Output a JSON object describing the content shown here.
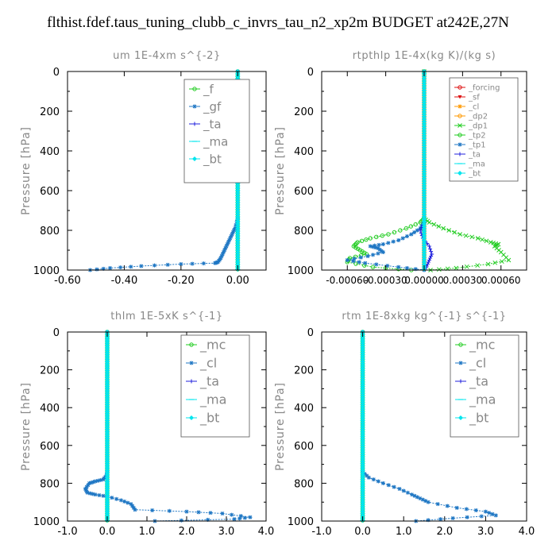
{
  "suptitle": "flthist.fdef.taus_tuning_clubb_c_invrs_tau_n2_xp2m  BUDGET at242E,27N",
  "colors": {
    "green": "#22cc22",
    "blue": "#1f77c4",
    "navy": "#2020dd",
    "orange": "#ff9900",
    "red": "#dd1111",
    "cyan": "#00e5ee",
    "axis_text": "#888888"
  },
  "chart_data": [
    {
      "type": "line",
      "title": "um  1E-4xm s^{-2}",
      "ylabel": "Pressure [hPa]",
      "xlim": [
        -0.6,
        0.1
      ],
      "ylim": [
        1000,
        0
      ],
      "xticks": [
        "-0.60",
        "-0.40",
        "-0.20",
        "0.00"
      ],
      "xtick_values": [
        -0.6,
        -0.4,
        -0.2,
        0.0
      ],
      "yticks": [
        "0",
        "200",
        "400",
        "600",
        "800",
        "1000"
      ],
      "legend_position": "top-right",
      "series": [
        {
          "name": "_f",
          "color": "#22cc22",
          "marker": "o",
          "x": [
            0,
            0
          ],
          "y": [
            0,
            1000
          ]
        },
        {
          "name": "_gf",
          "color": "#1f77c4",
          "marker": "*",
          "x": [
            0,
            0,
            -0.01,
            -0.02,
            -0.03,
            -0.04,
            -0.05,
            -0.06,
            -0.07,
            -0.08,
            -0.2,
            -0.34,
            -0.45,
            -0.52
          ],
          "y": [
            0,
            740,
            790,
            820,
            850,
            880,
            910,
            940,
            960,
            965,
            970,
            980,
            990,
            1000
          ]
        },
        {
          "name": "_ta",
          "color": "#2020dd",
          "marker": "+",
          "x": [
            0,
            0
          ],
          "y": [
            0,
            1000
          ]
        },
        {
          "name": "_ma",
          "color": "#00e5ee",
          "marker": "-",
          "x": [
            0,
            0
          ],
          "y": [
            0,
            1000
          ]
        },
        {
          "name": "_bt",
          "color": "#00e5ee",
          "marker": "D",
          "x": [
            0,
            0
          ],
          "y": [
            0,
            1000
          ]
        }
      ]
    },
    {
      "type": "line",
      "title": "rtpthlp  1E-4x(kg K)/(kg s)",
      "ylabel": "Pressure [hPa]",
      "xlim": [
        -0.0008,
        0.0008
      ],
      "ylim": [
        1000,
        0
      ],
      "xticks": [
        "-0.00060",
        "-0.00030",
        "0.00000",
        "0.00030",
        "0.00060"
      ],
      "xtick_values": [
        -0.0006,
        -0.0003,
        0.0,
        0.0003,
        0.0006
      ],
      "yticks": [
        "0",
        "200",
        "400",
        "600",
        "800",
        "1000"
      ],
      "legend_position": "top-right",
      "series": [
        {
          "name": "_forcing",
          "color": "#dd1111",
          "marker": "o",
          "x": [
            0,
            0
          ],
          "y": [
            0,
            1000
          ]
        },
        {
          "name": "_sf",
          "color": "#dd1111",
          "marker": "v",
          "x": [
            0,
            0
          ],
          "y": [
            0,
            1000
          ]
        },
        {
          "name": "_cl",
          "color": "#ff9900",
          "marker": "*",
          "x": [
            0,
            0
          ],
          "y": [
            0,
            1000
          ]
        },
        {
          "name": "_dp2",
          "color": "#ff9900",
          "marker": "o",
          "x": [
            0,
            0
          ],
          "y": [
            0,
            1000
          ]
        },
        {
          "name": "_dp1",
          "color": "#22cc22",
          "marker": "x",
          "x": [
            0,
            0,
            4e-05,
            0.00015,
            0.00028,
            0.00042,
            0.00052,
            0.00058,
            0.00055,
            0.0006,
            0.00066,
            0.0005,
            0.00025,
            5e-05
          ],
          "y": [
            0,
            740,
            760,
            790,
            820,
            840,
            860,
            870,
            880,
            910,
            950,
            970,
            990,
            1000
          ]
        },
        {
          "name": "_tp2",
          "color": "#22cc22",
          "marker": "o",
          "x": [
            0,
            0,
            -3e-05,
            -0.00014,
            -0.00028,
            -0.00042,
            -0.00052,
            -0.00055,
            -0.0005,
            -0.00045,
            -0.00058,
            -0.0006,
            -0.0004,
            -0.0001
          ],
          "y": [
            0,
            740,
            760,
            790,
            820,
            840,
            860,
            880,
            900,
            920,
            940,
            960,
            985,
            1000
          ]
        },
        {
          "name": "_tp1",
          "color": "#1f77c4",
          "marker": "*",
          "x": [
            0,
            0,
            -3e-05,
            -0.0001,
            -0.0002,
            -0.00032,
            -0.00042,
            -0.00036,
            -0.00032,
            -0.00044,
            -0.0006,
            -0.00046,
            -0.0002,
            0
          ],
          "y": [
            0,
            760,
            790,
            820,
            850,
            870,
            880,
            890,
            910,
            930,
            950,
            965,
            985,
            1000
          ]
        },
        {
          "name": "_ta",
          "color": "#2020dd",
          "marker": "+",
          "x": [
            0,
            0,
            -3e-05,
            -1e-05,
            4e-05,
            6e-05,
            4e-05,
            2e-05,
            0
          ],
          "y": [
            0,
            760,
            800,
            840,
            880,
            920,
            950,
            980,
            1000
          ]
        },
        {
          "name": "_ma",
          "color": "#00e5ee",
          "marker": "-",
          "x": [
            0,
            0
          ],
          "y": [
            0,
            1000
          ]
        },
        {
          "name": "_bt",
          "color": "#00e5ee",
          "marker": "D",
          "x": [
            0,
            0
          ],
          "y": [
            0,
            1000
          ]
        }
      ]
    },
    {
      "type": "line",
      "title": "thlm  1E-5xK s^{-1}",
      "ylabel": "Pressure [hPa]",
      "xlim": [
        -1.0,
        4.0
      ],
      "ylim": [
        1000,
        0
      ],
      "xticks": [
        "-1.0",
        "0.0",
        "1.0",
        "2.0",
        "3.0",
        "4.0"
      ],
      "xtick_values": [
        -1.0,
        0.0,
        1.0,
        2.0,
        3.0,
        4.0
      ],
      "yticks": [
        "0",
        "200",
        "400",
        "600",
        "800",
        "1000"
      ],
      "legend_position": "top-right",
      "series": [
        {
          "name": "_mc",
          "color": "#22cc22",
          "marker": "o",
          "x": [
            0,
            0
          ],
          "y": [
            0,
            1000
          ]
        },
        {
          "name": "_cl",
          "color": "#1f77c4",
          "marker": "*",
          "x": [
            0,
            0,
            -0.02,
            -0.1,
            -0.3,
            -0.45,
            -0.55,
            -0.5,
            -0.3,
            0.0,
            0.35,
            0.6,
            0.7,
            2.0,
            2.9,
            3.6,
            3.2,
            1.2
          ],
          "y": [
            0,
            740,
            760,
            780,
            790,
            800,
            830,
            850,
            860,
            870,
            890,
            910,
            940,
            950,
            960,
            980,
            990,
            1000
          ]
        },
        {
          "name": "_ta",
          "color": "#2020dd",
          "marker": "+",
          "x": [
            0,
            0
          ],
          "y": [
            0,
            1000
          ]
        },
        {
          "name": "_ma",
          "color": "#00e5ee",
          "marker": "-",
          "x": [
            0,
            0
          ],
          "y": [
            0,
            1000
          ]
        },
        {
          "name": "_bt",
          "color": "#00e5ee",
          "marker": "D",
          "x": [
            0,
            0
          ],
          "y": [
            0,
            1000
          ]
        }
      ]
    },
    {
      "type": "line",
      "title": "rtm  1E-8xkg kg^{-1} s^{-1}",
      "ylabel": "Pressure [hPa]",
      "xlim": [
        -1.0,
        4.0
      ],
      "ylim": [
        1000,
        0
      ],
      "xticks": [
        "-1.0",
        "0.0",
        "1.0",
        "2.0",
        "3.0",
        "4.0"
      ],
      "xtick_values": [
        -1.0,
        0.0,
        1.0,
        2.0,
        3.0,
        4.0
      ],
      "yticks": [
        "0",
        "200",
        "400",
        "600",
        "800",
        "1000"
      ],
      "legend_position": "top-right",
      "series": [
        {
          "name": "_mc",
          "color": "#22cc22",
          "marker": "o",
          "x": [
            0,
            0
          ],
          "y": [
            0,
            1000
          ]
        },
        {
          "name": "_cl",
          "color": "#1f77c4",
          "marker": "*",
          "x": [
            0,
            0,
            0.15,
            0.5,
            0.9,
            1.2,
            1.4,
            1.6,
            2.3,
            3.0,
            3.25,
            2.2,
            1.3
          ],
          "y": [
            0,
            740,
            770,
            800,
            830,
            860,
            880,
            900,
            930,
            950,
            970,
            985,
            1000
          ]
        },
        {
          "name": "_ta",
          "color": "#2020dd",
          "marker": "+",
          "x": [
            0,
            0
          ],
          "y": [
            0,
            1000
          ]
        },
        {
          "name": "_ma",
          "color": "#00e5ee",
          "marker": "-",
          "x": [
            0,
            0
          ],
          "y": [
            0,
            1000
          ]
        },
        {
          "name": "_bt",
          "color": "#00e5ee",
          "marker": "D",
          "x": [
            0,
            0
          ],
          "y": [
            0,
            1000
          ]
        }
      ]
    }
  ]
}
